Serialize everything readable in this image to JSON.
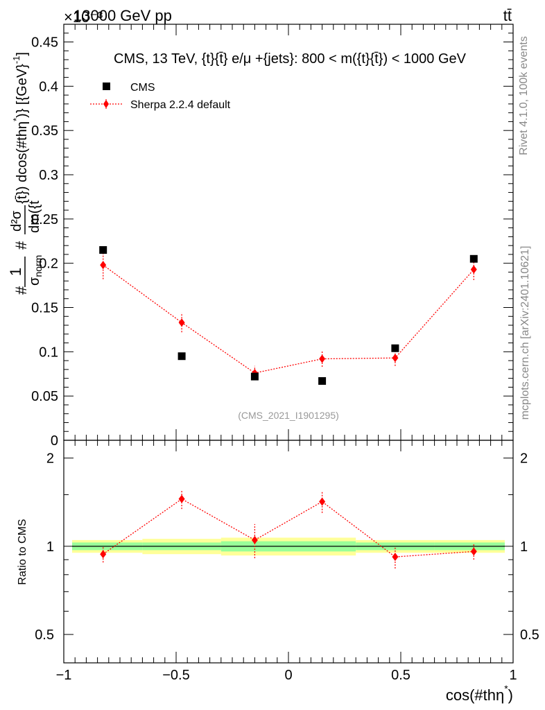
{
  "header": {
    "energy": "13000 GeV pp",
    "process": "tt̄",
    "exponent": "×10⁻³"
  },
  "side": {
    "rivet": "Rivet 4.1.0,  100k events",
    "mcplots": "mcplots.cern.ch [arXiv:2401.10621]"
  },
  "colors": {
    "data": "#000000",
    "mc": "#ff0000",
    "band_inner": "#99ff99",
    "band_outer": "#ffff99",
    "watermark": "#999999",
    "side_text": "#888888"
  },
  "chart_data": [
    {
      "type": "scatter",
      "title": "CMS, 13 TeV, {t}{t̄} e/μ +{jets}: 800 < m({t}{t̄}) < 1000 GeV",
      "watermark": "(CMS_2021_I1901295)",
      "ylabel": "#1/σnorm #d²σ/dm({t}{t̄}) dcos(#thη*)} [{GeV}⁻¹]",
      "ylabel_parts": {
        "prefix": "#",
        "frac1_num": "1",
        "frac1_den": "σ",
        "frac1_den_sub": "norm",
        "mid": "#",
        "frac2_num": "d²σ",
        "frac2_den": "dm({t",
        "tail": "{t̄}) dcos(#thη",
        "tail_sup": "*",
        "tail_end": ")} [{GeV}",
        "unit_sup": "-1",
        "unit_end": "]"
      },
      "xlim": [
        -1,
        1
      ],
      "ylim": [
        0,
        0.47
      ],
      "y_ticks": [
        0,
        0.05,
        0.1,
        0.15,
        0.2,
        0.25,
        0.3,
        0.35,
        0.4,
        0.45
      ],
      "y_tick_labels": [
        "0",
        "0.05",
        "0.1",
        "0.15",
        "0.2",
        "0.25",
        "0.3",
        "0.35",
        "0.4",
        "0.45"
      ],
      "legend": {
        "position": "top-left",
        "entries": [
          "CMS",
          "Sherpa 2.2.4 default"
        ]
      },
      "x_bins": [
        -1,
        -0.65,
        -0.3,
        0,
        0.3,
        0.65,
        1
      ],
      "series": [
        {
          "name": "CMS",
          "x": [
            -0.825,
            -0.475,
            -0.15,
            0.15,
            0.475,
            0.825
          ],
          "values": [
            0.215,
            0.095,
            0.072,
            0.067,
            0.104,
            0.205
          ],
          "errors": [
            0.002,
            0.001,
            0.001,
            0.001,
            0.001,
            0.002
          ]
        },
        {
          "name": "Sherpa 2.2.4 default",
          "x": [
            -0.825,
            -0.475,
            -0.15,
            0.15,
            0.475,
            0.825
          ],
          "values": [
            0.198,
            0.133,
            0.076,
            0.092,
            0.093,
            0.193
          ],
          "errors": [
            0.016,
            0.011,
            0.008,
            0.009,
            0.009,
            0.012
          ]
        }
      ]
    },
    {
      "type": "line",
      "ylabel": "Ratio to CMS",
      "xlabel": "cos(#thη",
      "xlabel_sup": "*",
      "xlabel_end": ")",
      "xlim": [
        -1,
        1
      ],
      "ylim": [
        0.4,
        2.3
      ],
      "x_ticks": [
        -1,
        -0.5,
        0,
        0.5,
        1
      ],
      "x_tick_labels": [
        "−1",
        "−0.5",
        "0",
        "0.5",
        "1"
      ],
      "y_ticks": [
        0.5,
        1,
        2
      ],
      "y_tick_labels": [
        "0.5",
        "1",
        "2"
      ],
      "band_bins": [
        -1,
        -0.65,
        -0.3,
        0,
        0.3,
        0.65,
        1
      ],
      "band_inner_halfwidth": [
        0.03,
        0.03,
        0.04,
        0.04,
        0.03,
        0.03
      ],
      "band_outer_halfwidth": [
        0.05,
        0.06,
        0.07,
        0.07,
        0.05,
        0.05
      ],
      "series": [
        {
          "name": "Sherpa 2.2.4 default",
          "x": [
            -0.825,
            -0.475,
            -0.15,
            0.15,
            0.475,
            0.825
          ],
          "values": [
            0.94,
            1.45,
            1.05,
            1.42,
            0.92,
            0.96
          ],
          "errors": [
            0.06,
            0.11,
            0.14,
            0.12,
            0.08,
            0.06
          ]
        }
      ]
    }
  ]
}
